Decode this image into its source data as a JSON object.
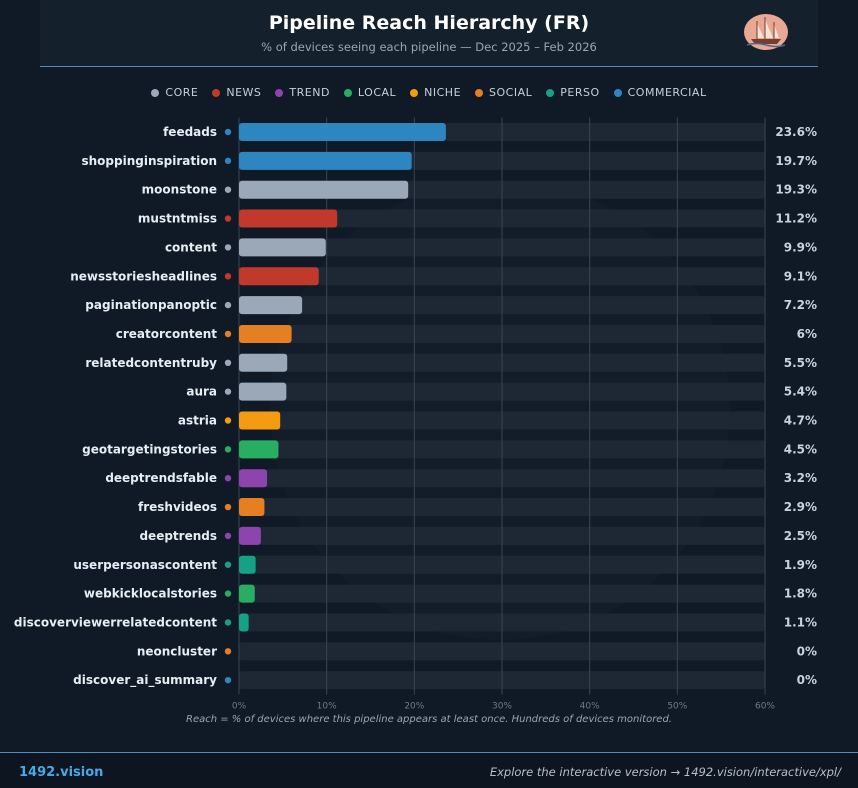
{
  "header": {
    "title": "Pipeline Reach Hierarchy (FR)",
    "subtitle": "% of devices seeing each pipeline — Dec 2025 – Feb 2026"
  },
  "legend": [
    {
      "name": "CORE",
      "color": "#9aa8b8"
    },
    {
      "name": "NEWS",
      "color": "#c0392b"
    },
    {
      "name": "TREND",
      "color": "#8e44ad"
    },
    {
      "name": "LOCAL",
      "color": "#27ae60"
    },
    {
      "name": "NICHE",
      "color": "#f39c12"
    },
    {
      "name": "SOCIAL",
      "color": "#e67e22"
    },
    {
      "name": "PERSO",
      "color": "#16a085"
    },
    {
      "name": "COMMERCIAL",
      "color": "#2e86c1"
    }
  ],
  "chart_data": {
    "type": "bar",
    "orientation": "horizontal",
    "categories": [
      "feedads",
      "shoppinginspiration",
      "moonstone",
      "mustntmiss",
      "content",
      "newsstoriesheadlines",
      "paginationpanoptic",
      "creatorcontent",
      "relatedcontentruby",
      "aura",
      "astria",
      "geotargetingstories",
      "deeptrendsfable",
      "freshvideos",
      "deeptrends",
      "userpersonascontent",
      "webkicklocalstories",
      "discoverviewerrelatedcontent",
      "neoncluster",
      "discover_ai_summary"
    ],
    "values": [
      23.6,
      19.7,
      19.3,
      11.2,
      9.9,
      9.1,
      7.2,
      6,
      5.5,
      5.4,
      4.7,
      4.5,
      3.2,
      2.9,
      2.5,
      1.9,
      1.8,
      1.1,
      0,
      0
    ],
    "value_labels": [
      "23.6%",
      "19.7%",
      "19.3%",
      "11.2%",
      "9.9%",
      "9.1%",
      "7.2%",
      "6%",
      "5.5%",
      "5.4%",
      "4.7%",
      "4.5%",
      "3.2%",
      "2.9%",
      "2.5%",
      "1.9%",
      "1.8%",
      "1.1%",
      "0%",
      "0%"
    ],
    "groups": [
      "COMMERCIAL",
      "COMMERCIAL",
      "CORE",
      "NEWS",
      "CORE",
      "NEWS",
      "CORE",
      "SOCIAL",
      "CORE",
      "CORE",
      "NICHE",
      "LOCAL",
      "TREND",
      "SOCIAL",
      "TREND",
      "PERSO",
      "LOCAL",
      "PERSO",
      "SOCIAL",
      "COMMERCIAL"
    ],
    "xlim": [
      0,
      60
    ],
    "xticks": [
      0,
      10,
      20,
      30,
      40,
      50,
      60
    ],
    "xtick_labels": [
      "0%",
      "10%",
      "20%",
      "30%",
      "40%",
      "50%",
      "60%"
    ],
    "grid": true,
    "legend_position": "top-center"
  },
  "footnote": "Reach = % of devices where this pipeline appears at least once. Hundreds of devices monitored.",
  "footer": {
    "brand": "1492.vision",
    "explore": "Explore the interactive version → 1492.vision/interactive/xpl/"
  },
  "logo_icon": "ship-logo-icon"
}
